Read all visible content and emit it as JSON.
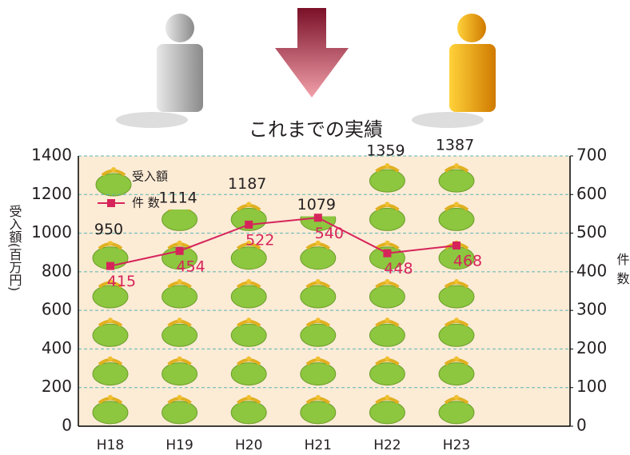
{
  "chart_data": {
    "type": "bar",
    "title": "これまでの実績",
    "y_label": "受入額(百万円)",
    "y2_label": "件数",
    "categories": [
      "H18",
      "H19",
      "H20",
      "H21",
      "H22",
      "H23"
    ],
    "series": [
      {
        "name": "受入額",
        "color": "#8dc63f",
        "values": [
          950,
          1114,
          1187,
          1079,
          1359,
          1387
        ]
      },
      {
        "name": "件 数",
        "type": "line",
        "axis": "y2",
        "color": "#d6245b",
        "values": [
          415,
          454,
          522,
          540,
          448,
          468
        ]
      }
    ],
    "ylim": [
      0,
      1400
    ],
    "yticks": [
      0,
      200,
      400,
      600,
      800,
      1000,
      1200,
      1400
    ],
    "y2lim": [
      0,
      700
    ],
    "y2ticks": [
      0,
      100,
      200,
      300,
      400,
      500,
      600,
      700
    ],
    "grid": true,
    "legend": "top-left"
  }
}
